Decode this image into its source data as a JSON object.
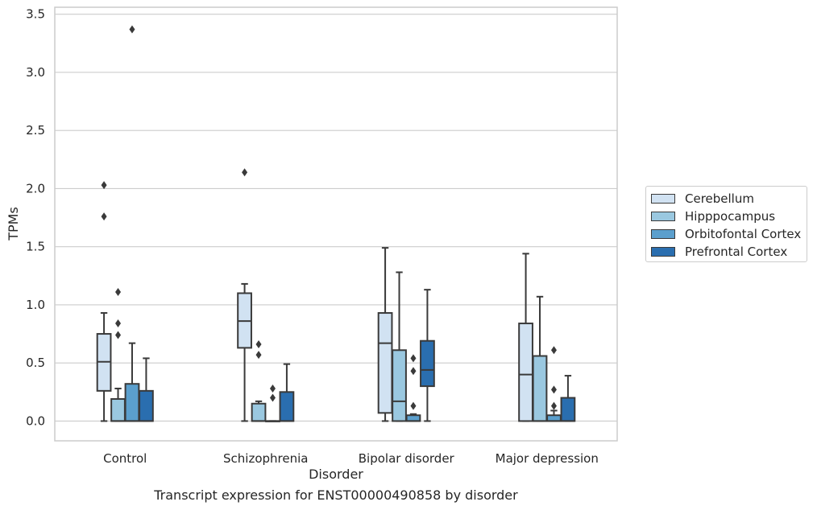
{
  "chart_data": {
    "type": "box",
    "xlabel": "Disorder",
    "ylabel": "TPMs",
    "caption": "Transcript expression for ENST00000490858 by disorder",
    "ylim": [
      -0.17,
      3.56
    ],
    "yticks": [
      "0.0",
      "0.5",
      "1.0",
      "1.5",
      "2.0",
      "2.5",
      "3.0",
      "3.5"
    ],
    "grid": "horizontal",
    "legend_position": "outside-right",
    "categories": [
      "Control",
      "Schizophrenia",
      "Bipolar disorder",
      "Major depression"
    ],
    "series": [
      {
        "name": "Cerebellum",
        "color": "#d1e2f2",
        "boxes": [
          {
            "whislo": 0.0,
            "q1": 0.26,
            "med": 0.51,
            "q3": 0.75,
            "whishi": 0.93,
            "fliers": [
              1.76,
              2.03
            ]
          },
          {
            "whislo": 0.0,
            "q1": 0.63,
            "med": 0.86,
            "q3": 1.1,
            "whishi": 1.18,
            "fliers": [
              2.14
            ]
          },
          {
            "whislo": 0.0,
            "q1": 0.07,
            "med": 0.67,
            "q3": 0.93,
            "whishi": 1.49,
            "fliers": []
          },
          {
            "whislo": 0.0,
            "q1": 0.0,
            "med": 0.4,
            "q3": 0.84,
            "whishi": 1.44,
            "fliers": []
          }
        ]
      },
      {
        "name": "Hipppocampus",
        "color": "#9ac8e0",
        "boxes": [
          {
            "whislo": 0.0,
            "q1": 0.0,
            "med": 0.0,
            "q3": 0.19,
            "whishi": 0.28,
            "fliers": [
              0.74,
              0.84,
              1.11
            ]
          },
          {
            "whislo": 0.0,
            "q1": 0.0,
            "med": 0.0,
            "q3": 0.15,
            "whishi": 0.17,
            "fliers": [
              0.57,
              0.66
            ]
          },
          {
            "whislo": 0.0,
            "q1": 0.0,
            "med": 0.17,
            "q3": 0.61,
            "whishi": 1.28,
            "fliers": []
          },
          {
            "whislo": 0.0,
            "q1": 0.0,
            "med": 0.0,
            "q3": 0.56,
            "whishi": 1.07,
            "fliers": []
          }
        ]
      },
      {
        "name": "Orbitofontal Cortex",
        "color": "#5b9fcd",
        "boxes": [
          {
            "whislo": 0.0,
            "q1": 0.0,
            "med": 0.0,
            "q3": 0.32,
            "whishi": 0.67,
            "fliers": [
              3.37
            ]
          },
          {
            "whislo": 0.0,
            "q1": 0.0,
            "med": 0.0,
            "q3": 0.0,
            "whishi": 0.0,
            "fliers": [
              0.2,
              0.28
            ]
          },
          {
            "whislo": 0.0,
            "q1": 0.0,
            "med": 0.0,
            "q3": 0.05,
            "whishi": 0.06,
            "fliers": [
              0.13,
              0.43,
              0.54
            ]
          },
          {
            "whislo": 0.0,
            "q1": 0.0,
            "med": 0.0,
            "q3": 0.05,
            "whishi": 0.09,
            "fliers": [
              0.13,
              0.27,
              0.61
            ]
          }
        ]
      },
      {
        "name": "Prefrontal Cortex",
        "color": "#2a6eaf",
        "boxes": [
          {
            "whislo": 0.0,
            "q1": 0.0,
            "med": 0.0,
            "q3": 0.26,
            "whishi": 0.54,
            "fliers": []
          },
          {
            "whislo": 0.0,
            "q1": 0.0,
            "med": 0.0,
            "q3": 0.25,
            "whishi": 0.49,
            "fliers": []
          },
          {
            "whislo": 0.0,
            "q1": 0.3,
            "med": 0.44,
            "q3": 0.69,
            "whishi": 1.13,
            "fliers": []
          },
          {
            "whislo": 0.0,
            "q1": 0.0,
            "med": 0.0,
            "q3": 0.2,
            "whishi": 0.39,
            "fliers": []
          }
        ]
      }
    ]
  }
}
